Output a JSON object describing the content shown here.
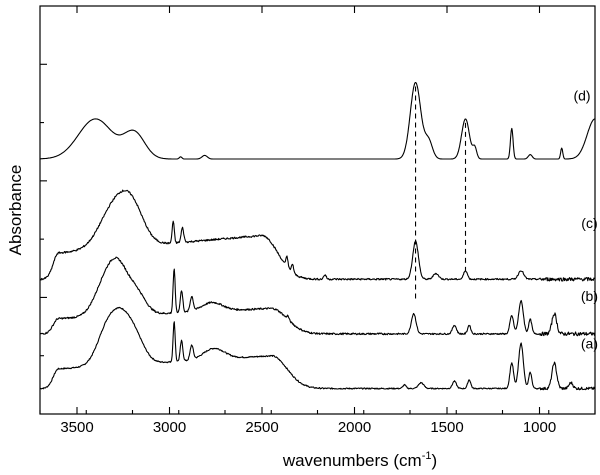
{
  "chart_data": {
    "type": "line",
    "title": "",
    "xlabel": "wavenumbers (cm",
    "xlabel_superscript": "-1",
    "xlabel_suffix": ")",
    "ylabel": "Absorbance",
    "xlim": [
      3700,
      700
    ],
    "x_reversed": true,
    "xticks": [
      3500,
      3000,
      2500,
      2000,
      1500,
      1000
    ],
    "xtick_labels": [
      "3500",
      "3000",
      "2500",
      "2000",
      "1500",
      "1000"
    ],
    "ylim": [
      0,
      5.6
    ],
    "yticks": [
      0.8,
      1.6,
      2.4,
      3.2,
      4.0,
      4.8
    ],
    "grid": false,
    "reference_lines": [
      1670,
      1400
    ],
    "series": [
      {
        "name": "(a)",
        "label_at": [
          730,
          0.9
        ],
        "peaks": [
          {
            "x": 3330,
            "h": 0.55,
            "w": 80
          },
          {
            "x": 3250,
            "h": 0.45,
            "w": 70
          },
          {
            "x": 3180,
            "h": 0.3,
            "w": 70
          },
          {
            "x": 2975,
            "h": 0.55,
            "w": 8
          },
          {
            "x": 2935,
            "h": 0.28,
            "w": 10
          },
          {
            "x": 2880,
            "h": 0.2,
            "w": 12
          },
          {
            "x": 2760,
            "h": 0.15,
            "w": 80
          },
          {
            "x": 1730,
            "h": 0.05,
            "w": 12
          },
          {
            "x": 1640,
            "h": 0.08,
            "w": 20
          },
          {
            "x": 1460,
            "h": 0.1,
            "w": 15
          },
          {
            "x": 1380,
            "h": 0.12,
            "w": 12
          },
          {
            "x": 1150,
            "h": 0.35,
            "w": 14
          },
          {
            "x": 1100,
            "h": 0.62,
            "w": 18
          },
          {
            "x": 1050,
            "h": 0.22,
            "w": 12
          },
          {
            "x": 920,
            "h": 0.35,
            "w": 18
          },
          {
            "x": 830,
            "h": 0.08,
            "w": 15
          }
        ],
        "baseline": 0.35,
        "broad": {
          "from": 3600,
          "to": 2450,
          "level": 0.45
        },
        "noise": 0.015
      },
      {
        "name": "(b)",
        "label_at": [
          730,
          1.55
        ],
        "peaks": [
          {
            "x": 3340,
            "h": 0.5,
            "w": 85
          },
          {
            "x": 3270,
            "h": 0.45,
            "w": 70
          },
          {
            "x": 3180,
            "h": 0.3,
            "w": 70
          },
          {
            "x": 2975,
            "h": 0.6,
            "w": 8
          },
          {
            "x": 2935,
            "h": 0.3,
            "w": 10
          },
          {
            "x": 2880,
            "h": 0.2,
            "w": 12
          },
          {
            "x": 2770,
            "h": 0.12,
            "w": 80
          },
          {
            "x": 2360,
            "h": 0.05,
            "w": 8
          },
          {
            "x": 1680,
            "h": 0.28,
            "w": 18
          },
          {
            "x": 1460,
            "h": 0.12,
            "w": 15
          },
          {
            "x": 1380,
            "h": 0.12,
            "w": 12
          },
          {
            "x": 1150,
            "h": 0.25,
            "w": 14
          },
          {
            "x": 1100,
            "h": 0.45,
            "w": 18
          },
          {
            "x": 1050,
            "h": 0.2,
            "w": 12
          },
          {
            "x": 920,
            "h": 0.28,
            "w": 18
          }
        ],
        "baseline": 1.1,
        "broad": {
          "from": 3600,
          "to": 2450,
          "level": 0.35
        },
        "noise": 0.02
      },
      {
        "name": "(c)",
        "label_at": [
          730,
          2.55
        ],
        "peaks": [
          {
            "x": 3300,
            "h": 0.55,
            "w": 110
          },
          {
            "x": 3200,
            "h": 0.45,
            "w": 90
          },
          {
            "x": 2980,
            "h": 0.3,
            "w": 8
          },
          {
            "x": 2930,
            "h": 0.2,
            "w": 10
          },
          {
            "x": 2365,
            "h": 0.15,
            "w": 8
          },
          {
            "x": 2335,
            "h": 0.12,
            "w": 8
          },
          {
            "x": 2160,
            "h": 0.06,
            "w": 10
          },
          {
            "x": 1670,
            "h": 0.52,
            "w": 22
          },
          {
            "x": 1560,
            "h": 0.08,
            "w": 20
          },
          {
            "x": 1400,
            "h": 0.12,
            "w": 14
          },
          {
            "x": 1100,
            "h": 0.12,
            "w": 20
          }
        ],
        "baseline": 1.85,
        "broad": {
          "from": 3600,
          "to": 2500,
          "level": 0.6
        },
        "noise": 0.02
      },
      {
        "name": "(d)",
        "label_at": [
          770,
          4.3
        ],
        "peaks": [
          {
            "x": 3400,
            "h": 0.55,
            "w": 130
          },
          {
            "x": 3190,
            "h": 0.35,
            "w": 80
          },
          {
            "x": 2940,
            "h": 0.03,
            "w": 10
          },
          {
            "x": 2810,
            "h": 0.05,
            "w": 20
          },
          {
            "x": 1670,
            "h": 1.05,
            "w": 40
          },
          {
            "x": 1600,
            "h": 0.25,
            "w": 30
          },
          {
            "x": 1400,
            "h": 0.55,
            "w": 30
          },
          {
            "x": 1350,
            "h": 0.15,
            "w": 15
          },
          {
            "x": 1150,
            "h": 0.42,
            "w": 10
          },
          {
            "x": 1050,
            "h": 0.06,
            "w": 15
          },
          {
            "x": 880,
            "h": 0.15,
            "w": 8
          },
          {
            "x": 700,
            "h": 0.55,
            "w": 60
          }
        ],
        "baseline": 3.5,
        "broad": {
          "from": 3700,
          "to": 3700,
          "level": 0
        },
        "noise": 0.0
      }
    ]
  }
}
